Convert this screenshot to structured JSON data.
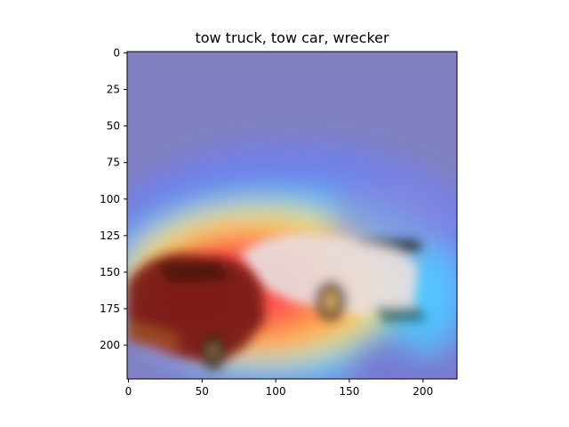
{
  "title": "tow truck, tow car, wrecker",
  "axes": {
    "x_ticks": [
      "0",
      "50",
      "100",
      "150",
      "200"
    ],
    "x_tick_values": [
      0,
      50,
      100,
      150,
      200
    ],
    "y_ticks": [
      "0",
      "25",
      "50",
      "75",
      "100",
      "125",
      "150",
      "175",
      "200"
    ],
    "y_tick_values": [
      0,
      25,
      50,
      75,
      100,
      125,
      150,
      175,
      200
    ],
    "xlim": [
      0,
      224
    ],
    "ylim": [
      224,
      0
    ]
  },
  "image": {
    "content": "grad-cam heatmap overlay on photo of two toy cars",
    "colors": {
      "background_overlay": "#8080c0",
      "hot": "#ff2020",
      "warm": "#ffd040",
      "cool": "#60c0ff",
      "car_dark": "#6a1a14",
      "car_white": "#e8e4e6"
    }
  }
}
